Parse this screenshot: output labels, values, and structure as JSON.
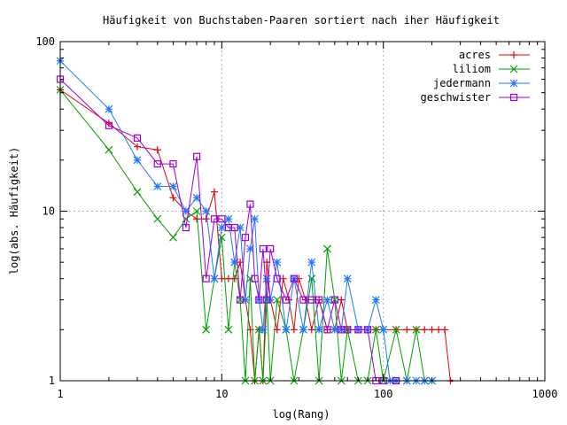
{
  "chart_data": {
    "type": "line",
    "title": "Häufigkeit von Buchstaben-Paaren sortiert nach iher Häufigkeit",
    "xlabel": "log(Rang)",
    "ylabel": "log(abs. Häufigkeit)",
    "xscale": "log",
    "yscale": "log",
    "xlim": [
      1,
      1000
    ],
    "ylim": [
      1,
      100
    ],
    "grid": true,
    "legend_position": "top-right",
    "x_ticks": [
      {
        "value": 1,
        "label": "1"
      },
      {
        "value": 10,
        "label": "10"
      },
      {
        "value": 100,
        "label": "100"
      },
      {
        "value": 1000,
        "label": "1000"
      }
    ],
    "y_ticks": [
      {
        "value": 1,
        "label": "1"
      },
      {
        "value": 10,
        "label": "10"
      },
      {
        "value": 100,
        "label": "100"
      }
    ],
    "series": [
      {
        "name": "acres",
        "color": "#e8000b",
        "marker": "plus",
        "points": [
          [
            1,
            52
          ],
          [
            2,
            33
          ],
          [
            3,
            24
          ],
          [
            4,
            23
          ],
          [
            5,
            12
          ],
          [
            6,
            10
          ],
          [
            7,
            9
          ],
          [
            8,
            9
          ],
          [
            9,
            13
          ],
          [
            10,
            4
          ],
          [
            11,
            4
          ],
          [
            12,
            4
          ],
          [
            13,
            5
          ],
          [
            14,
            3
          ],
          [
            15,
            2
          ],
          [
            16,
            1
          ],
          [
            17,
            2
          ],
          [
            18,
            1
          ],
          [
            19,
            5
          ],
          [
            20,
            3
          ],
          [
            22,
            2
          ],
          [
            24,
            4
          ],
          [
            26,
            3
          ],
          [
            28,
            2
          ],
          [
            30,
            4
          ],
          [
            33,
            3
          ],
          [
            36,
            2
          ],
          [
            40,
            3
          ],
          [
            45,
            2
          ],
          [
            50,
            2
          ],
          [
            55,
            3
          ],
          [
            60,
            2
          ],
          [
            70,
            2
          ],
          [
            80,
            2
          ],
          [
            90,
            2
          ],
          [
            100,
            2
          ],
          [
            120,
            2
          ],
          [
            140,
            2
          ],
          [
            160,
            2
          ],
          [
            180,
            2
          ],
          [
            200,
            2
          ],
          [
            220,
            2
          ],
          [
            240,
            2
          ],
          [
            260,
            1
          ]
        ],
        "tail_to": 270
      },
      {
        "name": "liliom",
        "color": "#00a000",
        "marker": "x",
        "points": [
          [
            1,
            52
          ],
          [
            2,
            23
          ],
          [
            3,
            13
          ],
          [
            4,
            9
          ],
          [
            5,
            7
          ],
          [
            6,
            9
          ],
          [
            7,
            10
          ],
          [
            8,
            2
          ],
          [
            9,
            4
          ],
          [
            10,
            7
          ],
          [
            11,
            2
          ],
          [
            12,
            5
          ],
          [
            13,
            3
          ],
          [
            14,
            1
          ],
          [
            15,
            4
          ],
          [
            16,
            1
          ],
          [
            17,
            2
          ],
          [
            18,
            1
          ],
          [
            19,
            3
          ],
          [
            20,
            1
          ],
          [
            22,
            3
          ],
          [
            25,
            2
          ],
          [
            28,
            1
          ],
          [
            32,
            2
          ],
          [
            36,
            4
          ],
          [
            40,
            1
          ],
          [
            45,
            6
          ],
          [
            50,
            3
          ],
          [
            55,
            1
          ],
          [
            60,
            2
          ],
          [
            70,
            1
          ],
          [
            80,
            1
          ],
          [
            90,
            2
          ],
          [
            100,
            1
          ],
          [
            120,
            2
          ],
          [
            140,
            1
          ],
          [
            160,
            2
          ],
          [
            180,
            1
          ],
          [
            200,
            1
          ]
        ],
        "tail_to": 200
      },
      {
        "name": "jedermann",
        "color": "#1f78ff",
        "marker": "asterisk",
        "points": [
          [
            1,
            77
          ],
          [
            2,
            40
          ],
          [
            3,
            20
          ],
          [
            4,
            14
          ],
          [
            5,
            14
          ],
          [
            6,
            10
          ],
          [
            7,
            12
          ],
          [
            8,
            10
          ],
          [
            9,
            4
          ],
          [
            10,
            8
          ],
          [
            11,
            9
          ],
          [
            12,
            5
          ],
          [
            13,
            8
          ],
          [
            14,
            3
          ],
          [
            15,
            6
          ],
          [
            16,
            9
          ],
          [
            17,
            3
          ],
          [
            18,
            2
          ],
          [
            19,
            4
          ],
          [
            20,
            3
          ],
          [
            22,
            5
          ],
          [
            25,
            2
          ],
          [
            28,
            4
          ],
          [
            32,
            2
          ],
          [
            36,
            5
          ],
          [
            40,
            2
          ],
          [
            45,
            3
          ],
          [
            50,
            2
          ],
          [
            55,
            2
          ],
          [
            60,
            4
          ],
          [
            70,
            2
          ],
          [
            80,
            2
          ],
          [
            90,
            3
          ],
          [
            100,
            2
          ],
          [
            110,
            1
          ],
          [
            120,
            1
          ],
          [
            140,
            1
          ],
          [
            160,
            1
          ],
          [
            180,
            1
          ],
          [
            200,
            1
          ]
        ],
        "tail_to": 200
      },
      {
        "name": "geschwister",
        "color": "#9c00d9",
        "marker": "square",
        "points": [
          [
            1,
            60
          ],
          [
            2,
            32
          ],
          [
            3,
            27
          ],
          [
            4,
            19
          ],
          [
            5,
            19
          ],
          [
            6,
            8
          ],
          [
            7,
            21
          ],
          [
            8,
            4
          ],
          [
            9,
            9
          ],
          [
            10,
            9
          ],
          [
            11,
            8
          ],
          [
            12,
            8
          ],
          [
            13,
            3
          ],
          [
            14,
            7
          ],
          [
            15,
            11
          ],
          [
            16,
            4
          ],
          [
            17,
            3
          ],
          [
            18,
            6
          ],
          [
            19,
            3
          ],
          [
            20,
            6
          ],
          [
            22,
            4
          ],
          [
            25,
            3
          ],
          [
            28,
            4
          ],
          [
            32,
            3
          ],
          [
            36,
            3
          ],
          [
            40,
            3
          ],
          [
            45,
            2
          ],
          [
            50,
            3
          ],
          [
            55,
            2
          ],
          [
            60,
            2
          ],
          [
            70,
            2
          ],
          [
            80,
            2
          ],
          [
            90,
            1
          ],
          [
            100,
            1
          ],
          [
            120,
            1
          ]
        ],
        "tail_to": 120
      }
    ]
  }
}
